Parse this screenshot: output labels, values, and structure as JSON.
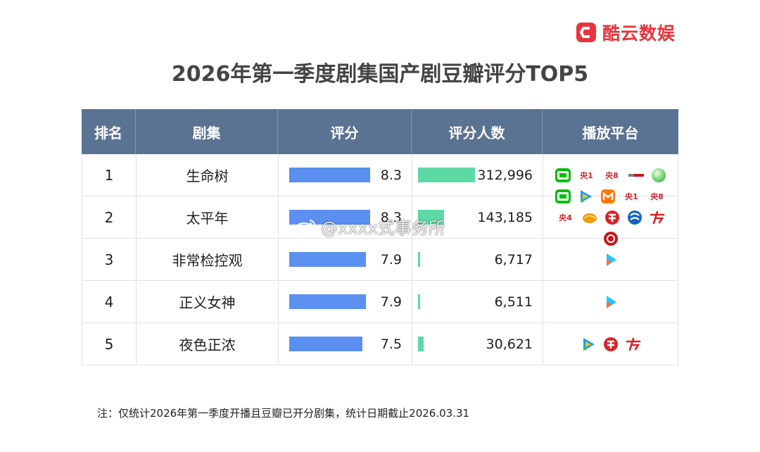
{
  "brand": {
    "name": "酷云数娱",
    "logo_icon": "kuyun-logo-icon",
    "color": "#e8343c"
  },
  "title": "2026年第一季度剧集国产剧豆瓣评分TOP5",
  "columns": [
    "排名",
    "剧集",
    "评分",
    "评分人数",
    "播放平台"
  ],
  "colors": {
    "header_bg": "#5b7392",
    "score_bar": "#5b8ff0",
    "count_bar": "#5dd9a4"
  },
  "chart_data": {
    "type": "table",
    "title": "2026年第一季度剧集国产剧豆瓣评分TOP5",
    "score_range": [
      0,
      10
    ],
    "count_range": [
      0,
      400000
    ],
    "rows": [
      {
        "rank": "1",
        "drama": "生命树",
        "score": 8.3,
        "score_label": "8.3",
        "count": 312996,
        "count_label": "312,996",
        "platforms": [
          {
            "icon": "iqiyi-icon"
          },
          {
            "icon": "cctv1-icon",
            "label": "央1"
          },
          {
            "icon": "cctv8-icon",
            "label": "央8"
          },
          {
            "icon": "btv-icon"
          },
          {
            "icon": "green-globe-icon"
          }
        ]
      },
      {
        "rank": "2",
        "drama": "太平年",
        "score": 8.3,
        "score_label": "8.3",
        "count": 143185,
        "count_label": "143,185",
        "platforms": [
          {
            "icon": "iqiyi-icon"
          },
          {
            "icon": "tencent-video-icon"
          },
          {
            "icon": "mgtv-icon"
          },
          {
            "icon": "cctv1-icon",
            "label": "央1"
          },
          {
            "icon": "cctv8-icon",
            "label": "央8"
          },
          {
            "icon": "cctv4-icon",
            "label": "央4"
          },
          {
            "icon": "hunan-tv-icon"
          },
          {
            "icon": "dragon-tv-icon"
          },
          {
            "icon": "zhejiang-tv-icon"
          },
          {
            "icon": "guangdong-tv-icon"
          },
          {
            "icon": "red-channel-icon"
          }
        ]
      },
      {
        "rank": "3",
        "drama": "非常检控观",
        "score": 7.9,
        "score_label": "7.9",
        "count": 6717,
        "count_label": "6,717",
        "platforms": [
          {
            "icon": "youku-icon"
          }
        ]
      },
      {
        "rank": "4",
        "drama": "正义女神",
        "score": 7.9,
        "score_label": "7.9",
        "count": 6511,
        "count_label": "6,511",
        "platforms": [
          {
            "icon": "youku-icon"
          }
        ]
      },
      {
        "rank": "5",
        "drama": "夜色正浓",
        "score": 7.5,
        "score_label": "7.5",
        "count": 30621,
        "count_label": "30,621",
        "platforms": [
          {
            "icon": "tencent-video-icon"
          },
          {
            "icon": "dragon-tv-icon"
          },
          {
            "icon": "guangdong-tv-icon"
          }
        ]
      }
    ]
  },
  "footnote": "注：仅统计2026年第一季度开播且豆瓣已开分剧集，统计日期截止2026.03.31",
  "watermark": {
    "text": "@xxxx式事务所",
    "icon": "weibo-icon"
  }
}
